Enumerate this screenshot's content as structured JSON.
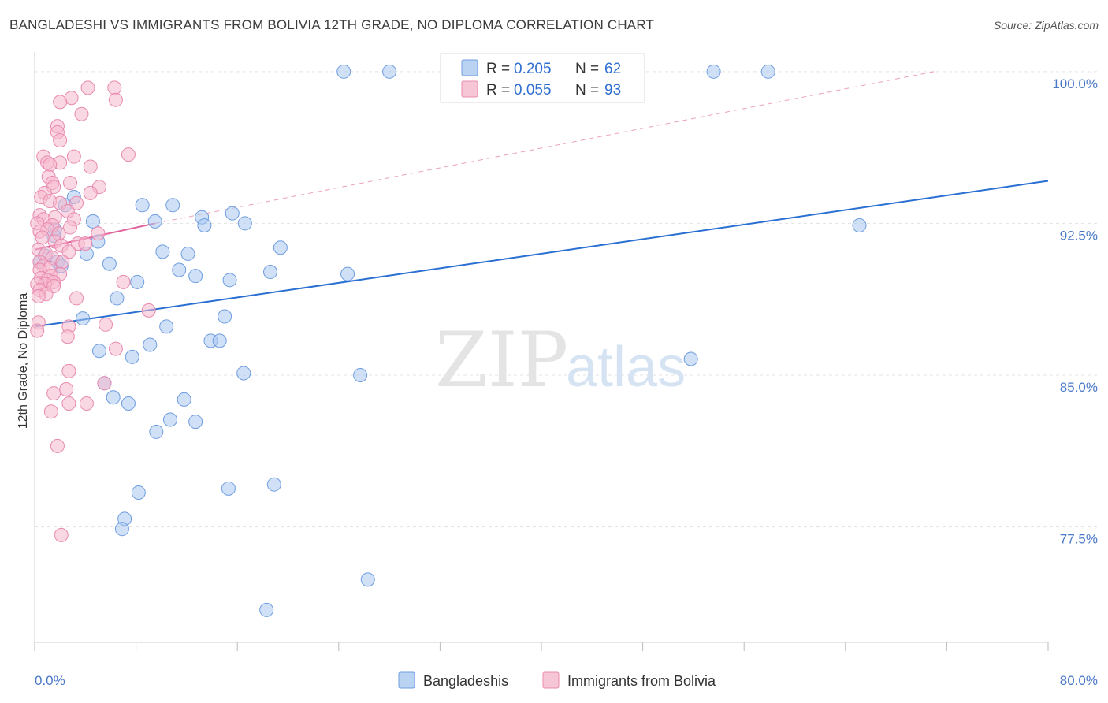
{
  "header": {
    "title": "BANGLADESHI VS IMMIGRANTS FROM BOLIVIA 12TH GRADE, NO DIPLOMA CORRELATION CHART",
    "source": "Source: ZipAtlas.com"
  },
  "watermark": {
    "zip": "ZIP",
    "atlas": "atlas"
  },
  "legend": {
    "r_label": "R =",
    "n_label": "N =",
    "rows": [
      {
        "r": "0.205",
        "n": "62",
        "color": "#aac8f0"
      },
      {
        "r": "0.055",
        "n": "93",
        "color": "#f5b8cc"
      }
    ]
  },
  "bottom_legend": [
    "Bangladeshis",
    "Immigrants from Bolivia"
  ],
  "chart_data": {
    "type": "scatter",
    "title": "BANGLADESHI VS IMMIGRANTS FROM BOLIVIA 12TH GRADE, NO DIPLOMA CORRELATION CHART",
    "xlabel": "",
    "ylabel": "12th Grade, No Diploma",
    "xlim": [
      0,
      80
    ],
    "ylim": [
      71.8,
      101.2
    ],
    "x_tick_labels": {
      "min": "0.0%",
      "max": "80.0%"
    },
    "y_ticks": [
      {
        "value": 77.5,
        "label": "77.5%"
      },
      {
        "value": 85.0,
        "label": "85.0%"
      },
      {
        "value": 92.5,
        "label": "92.5%"
      },
      {
        "value": 100.0,
        "label": "100.0%"
      }
    ],
    "series": [
      {
        "name": "Bangladeshis",
        "color": "#aac8f0",
        "stroke": "#6f9de0",
        "trend": {
          "x": [
            0,
            80
          ],
          "y": [
            87.4,
            94.6
          ],
          "color": "#2a6fd2",
          "style": "solid"
        },
        "points": [
          [
            24.4,
            100.0
          ],
          [
            28.0,
            100.0
          ],
          [
            53.6,
            100.0
          ],
          [
            57.9,
            100.0
          ],
          [
            1.6,
            92.2
          ],
          [
            3.1,
            93.8
          ],
          [
            2.4,
            93.4
          ],
          [
            4.6,
            92.6
          ],
          [
            5.0,
            91.6
          ],
          [
            1.8,
            90.6
          ],
          [
            0.8,
            90.9
          ],
          [
            2.1,
            90.4
          ],
          [
            0.4,
            90.6
          ],
          [
            1.5,
            91.9
          ],
          [
            4.1,
            91.0
          ],
          [
            5.9,
            90.5
          ],
          [
            8.5,
            93.4
          ],
          [
            10.9,
            93.4
          ],
          [
            9.5,
            92.6
          ],
          [
            13.2,
            92.8
          ],
          [
            13.4,
            92.4
          ],
          [
            15.6,
            93.0
          ],
          [
            16.6,
            92.5
          ],
          [
            19.4,
            91.3
          ],
          [
            10.1,
            91.1
          ],
          [
            12.1,
            91.0
          ],
          [
            11.4,
            90.2
          ],
          [
            12.7,
            89.9
          ],
          [
            15.4,
            89.7
          ],
          [
            18.6,
            90.1
          ],
          [
            24.7,
            90.0
          ],
          [
            8.1,
            89.6
          ],
          [
            6.5,
            88.8
          ],
          [
            3.8,
            87.8
          ],
          [
            10.4,
            87.4
          ],
          [
            15.0,
            87.9
          ],
          [
            13.9,
            86.7
          ],
          [
            14.6,
            86.7
          ],
          [
            9.1,
            86.5
          ],
          [
            5.1,
            86.2
          ],
          [
            7.7,
            85.9
          ],
          [
            16.5,
            85.1
          ],
          [
            25.7,
            85.0
          ],
          [
            51.8,
            85.8
          ],
          [
            5.5,
            84.6
          ],
          [
            6.2,
            83.9
          ],
          [
            7.4,
            83.6
          ],
          [
            11.8,
            83.8
          ],
          [
            10.7,
            82.8
          ],
          [
            12.7,
            82.7
          ],
          [
            9.6,
            82.2
          ],
          [
            8.2,
            79.2
          ],
          [
            15.3,
            79.4
          ],
          [
            18.9,
            79.6
          ],
          [
            7.1,
            77.9
          ],
          [
            6.9,
            77.4
          ],
          [
            26.3,
            74.9
          ],
          [
            18.3,
            73.4
          ],
          [
            65.1,
            92.4
          ]
        ]
      },
      {
        "name": "Immigrants from Bolivia",
        "color": "#f5b8cc",
        "stroke": "#e88ab0",
        "trend": {
          "x": [
            0,
            9.5
          ],
          "y": [
            91.2,
            92.5
          ],
          "color": "#e0609a",
          "style": "solid"
        },
        "trend_ext": {
          "x": [
            9.5,
            71.0
          ],
          "y": [
            92.5,
            100.0
          ],
          "color": "#eba0bd",
          "style": "dashed"
        },
        "points": [
          [
            4.2,
            99.2
          ],
          [
            6.3,
            99.2
          ],
          [
            2.9,
            98.7
          ],
          [
            6.4,
            98.6
          ],
          [
            2.0,
            98.5
          ],
          [
            3.7,
            97.9
          ],
          [
            1.8,
            97.3
          ],
          [
            1.8,
            97.0
          ],
          [
            2.0,
            96.6
          ],
          [
            7.4,
            95.9
          ],
          [
            0.7,
            95.8
          ],
          [
            3.1,
            95.8
          ],
          [
            1.0,
            95.5
          ],
          [
            2.0,
            95.5
          ],
          [
            1.2,
            95.4
          ],
          [
            4.4,
            95.3
          ],
          [
            1.1,
            94.8
          ],
          [
            2.8,
            94.5
          ],
          [
            1.4,
            94.5
          ],
          [
            1.5,
            94.3
          ],
          [
            5.1,
            94.3
          ],
          [
            0.8,
            94.0
          ],
          [
            4.4,
            94.0
          ],
          [
            0.5,
            93.8
          ],
          [
            1.2,
            93.6
          ],
          [
            2.0,
            93.5
          ],
          [
            3.3,
            93.5
          ],
          [
            2.6,
            93.1
          ],
          [
            0.4,
            92.9
          ],
          [
            1.6,
            92.8
          ],
          [
            0.7,
            92.7
          ],
          [
            3.1,
            92.7
          ],
          [
            0.2,
            92.5
          ],
          [
            1.4,
            92.4
          ],
          [
            2.8,
            92.3
          ],
          [
            1.0,
            92.2
          ],
          [
            0.4,
            92.1
          ],
          [
            1.9,
            92.0
          ],
          [
            5.0,
            92.0
          ],
          [
            0.6,
            91.8
          ],
          [
            1.6,
            91.6
          ],
          [
            3.4,
            91.5
          ],
          [
            2.1,
            91.4
          ],
          [
            4.0,
            91.5
          ],
          [
            0.3,
            91.2
          ],
          [
            2.7,
            91.1
          ],
          [
            0.9,
            91.0
          ],
          [
            1.4,
            90.8
          ],
          [
            0.4,
            90.6
          ],
          [
            2.2,
            90.6
          ],
          [
            0.7,
            90.4
          ],
          [
            1.2,
            90.3
          ],
          [
            0.4,
            90.2
          ],
          [
            2.0,
            90.0
          ],
          [
            1.3,
            89.9
          ],
          [
            0.5,
            89.8
          ],
          [
            1.0,
            89.7
          ],
          [
            1.5,
            89.6
          ],
          [
            0.8,
            89.5
          ],
          [
            0.2,
            89.5
          ],
          [
            1.5,
            89.4
          ],
          [
            7.0,
            89.6
          ],
          [
            0.4,
            89.2
          ],
          [
            0.9,
            89.0
          ],
          [
            0.3,
            88.9
          ],
          [
            3.3,
            88.8
          ],
          [
            9.0,
            88.2
          ],
          [
            0.3,
            87.6
          ],
          [
            2.7,
            87.4
          ],
          [
            5.6,
            87.5
          ],
          [
            0.2,
            87.2
          ],
          [
            2.6,
            86.9
          ],
          [
            6.4,
            86.3
          ],
          [
            2.7,
            85.2
          ],
          [
            5.5,
            84.6
          ],
          [
            2.5,
            84.3
          ],
          [
            1.5,
            84.1
          ],
          [
            4.1,
            83.6
          ],
          [
            2.7,
            83.6
          ],
          [
            1.3,
            83.2
          ],
          [
            1.8,
            81.5
          ],
          [
            2.1,
            77.1
          ]
        ]
      }
    ]
  }
}
